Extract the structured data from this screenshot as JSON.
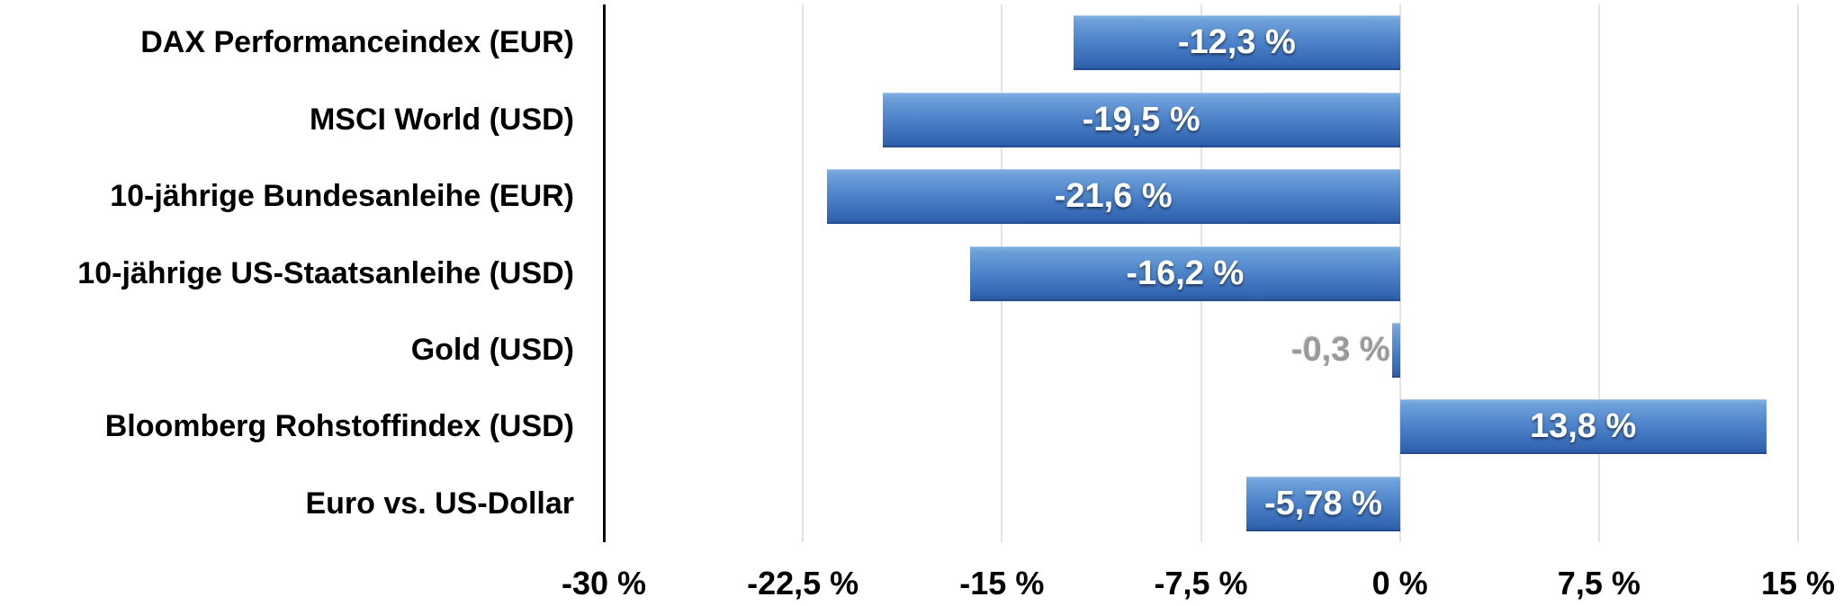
{
  "chart_data": {
    "type": "bar",
    "orientation": "horizontal",
    "title": "",
    "xlabel": "",
    "ylabel": "",
    "xlim": [
      -30,
      15
    ],
    "grid": true,
    "legend": false,
    "categories": [
      "DAX Performanceindex (EUR)",
      "MSCI World (USD)",
      "10-jährige Bundesanleihe (EUR)",
      "10-jährige US-Staatsanleihe (USD)",
      "Gold (USD)",
      "Bloomberg Rohstoffindex (USD)",
      "Euro vs. US-Dollar"
    ],
    "values": [
      -12.3,
      -19.5,
      -21.6,
      -16.2,
      -0.3,
      13.8,
      -5.78
    ],
    "value_labels": [
      "-12,3 %",
      "-19,5 %",
      "-21,6 %",
      "-16,2 %",
      "-0,3 %",
      "13,8 %",
      "-5,78 %"
    ],
    "x_tick_values": [
      -30,
      -22.5,
      -15,
      -7.5,
      0,
      7.5,
      15
    ],
    "x_tick_labels": [
      "-30 %",
      "-22,5 %",
      "-15 %",
      "-7,5 %",
      "0 %",
      "7,5 %",
      "15 %"
    ],
    "colors": {
      "bar_top": "#84b0e2",
      "bar_mid": "#4a80c8",
      "bar_bottom": "#2b58a2",
      "gridline": "#e3e3e3",
      "axis_line": "#0a0a0a",
      "category_text": "#000000",
      "value_text": "#ffffff",
      "outside_value_text": "#9a9a9a"
    }
  }
}
